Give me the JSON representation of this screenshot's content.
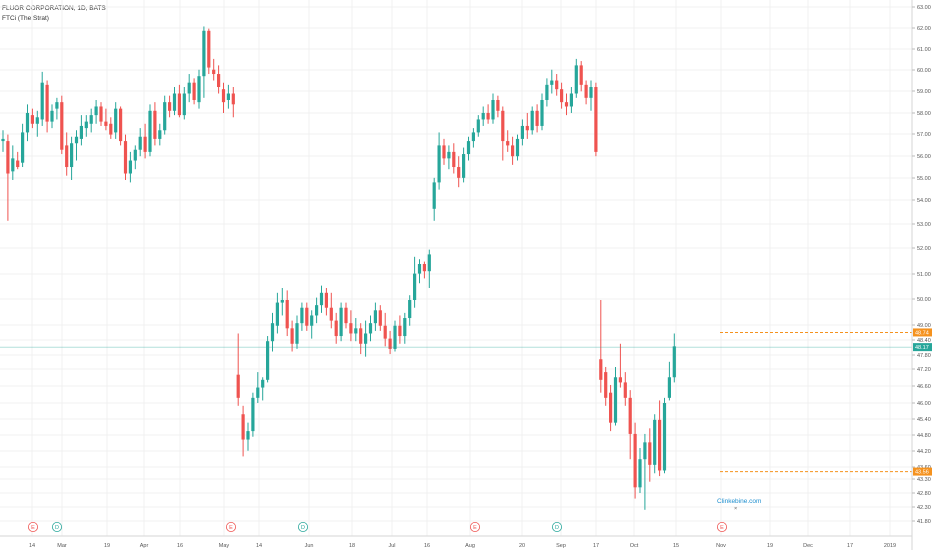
{
  "header": {
    "title": "FLUOR CORPORATION, 1D, BATS",
    "study": "FTCi (The Strat)"
  },
  "colors": {
    "up": "#26a69a",
    "down": "#ef5350",
    "level_line": "#f5921e",
    "current_line": "#26a69a",
    "earnings": "#ef5350",
    "dividend": "#26a69a",
    "watermark": "#1f8fcf"
  },
  "watermark": "Clinkebine.com",
  "chart_data": {
    "type": "candlestick",
    "title": "FLUOR CORPORATION, 1D, BATS",
    "study": "FTCi (The Strat)",
    "y_axis": {
      "side": "right",
      "range": [
        41.7,
        63.3
      ],
      "ticks": [
        "63.00",
        "62.00",
        "61.00",
        "60.00",
        "59.00",
        "58.00",
        "57.00",
        "56.00",
        "55.00",
        "54.00",
        "53.00",
        "52.00",
        "51.00",
        "50.00",
        "49.00",
        "48.40",
        "47.80",
        "47.20",
        "46.60",
        "46.00",
        "45.40",
        "44.80",
        "44.20",
        "43.60",
        "43.30",
        "42.80",
        "42.30",
        "41.80"
      ]
    },
    "x_axis": {
      "ticks": [
        "14",
        "Mar",
        "19",
        "Apr",
        "16",
        "May",
        "14",
        "Jun",
        "18",
        "Jul",
        "16",
        "Aug",
        "20",
        "Sep",
        "17",
        "Oct",
        "15",
        "Nov",
        "19",
        "Dec",
        "17",
        "2019"
      ]
    },
    "price_tags": [
      {
        "value": "48.74",
        "role": "level"
      },
      {
        "value": "48.17",
        "role": "current"
      },
      {
        "value": "43.56",
        "role": "level"
      }
    ],
    "level_lines": [
      48.74,
      43.56
    ],
    "current_price": 48.17,
    "events": [
      {
        "type": "E",
        "date": "Feb 21"
      },
      {
        "type": "D",
        "date": "Mar 1"
      },
      {
        "type": "E",
        "date": "May 3"
      },
      {
        "type": "D",
        "date": "Jun 1"
      },
      {
        "type": "E",
        "date": "Aug 2"
      },
      {
        "type": "D",
        "date": "Sep 4"
      },
      {
        "type": "E",
        "date": "Nov 2"
      }
    ],
    "candles": [
      {
        "o": 56.8,
        "h": 57.3,
        "l": 56.3,
        "c": 56.9
      },
      {
        "o": 56.8,
        "h": 57.1,
        "l": 53.3,
        "c": 55.3
      },
      {
        "o": 55.4,
        "h": 56.6,
        "l": 55.0,
        "c": 56.0
      },
      {
        "o": 55.9,
        "h": 56.3,
        "l": 55.5,
        "c": 55.6
      },
      {
        "o": 55.8,
        "h": 57.6,
        "l": 55.6,
        "c": 57.2
      },
      {
        "o": 57.2,
        "h": 58.5,
        "l": 56.8,
        "c": 58.1
      },
      {
        "o": 58.0,
        "h": 58.3,
        "l": 57.4,
        "c": 57.6
      },
      {
        "o": 57.6,
        "h": 58.2,
        "l": 57.0,
        "c": 57.9
      },
      {
        "o": 57.8,
        "h": 60.0,
        "l": 57.5,
        "c": 59.5
      },
      {
        "o": 59.4,
        "h": 59.6,
        "l": 57.2,
        "c": 57.7
      },
      {
        "o": 57.7,
        "h": 58.5,
        "l": 57.4,
        "c": 58.2
      },
      {
        "o": 58.3,
        "h": 58.8,
        "l": 57.8,
        "c": 58.6
      },
      {
        "o": 58.6,
        "h": 58.9,
        "l": 56.2,
        "c": 56.4
      },
      {
        "o": 56.6,
        "h": 57.2,
        "l": 55.2,
        "c": 55.6
      },
      {
        "o": 55.6,
        "h": 57.0,
        "l": 55.0,
        "c": 56.7
      },
      {
        "o": 56.7,
        "h": 57.3,
        "l": 55.9,
        "c": 57.0
      },
      {
        "o": 56.9,
        "h": 58.0,
        "l": 56.6,
        "c": 57.5
      },
      {
        "o": 57.4,
        "h": 58.0,
        "l": 57.0,
        "c": 57.7
      },
      {
        "o": 57.6,
        "h": 58.3,
        "l": 57.2,
        "c": 58.0
      },
      {
        "o": 58.0,
        "h": 58.7,
        "l": 57.6,
        "c": 58.4
      },
      {
        "o": 58.4,
        "h": 58.6,
        "l": 57.5,
        "c": 57.7
      },
      {
        "o": 57.7,
        "h": 58.3,
        "l": 57.3,
        "c": 57.5
      },
      {
        "o": 57.6,
        "h": 57.9,
        "l": 56.9,
        "c": 57.1
      },
      {
        "o": 57.2,
        "h": 58.6,
        "l": 56.9,
        "c": 58.3
      },
      {
        "o": 58.3,
        "h": 58.4,
        "l": 56.6,
        "c": 56.8
      },
      {
        "o": 56.8,
        "h": 57.1,
        "l": 55.0,
        "c": 55.3
      },
      {
        "o": 55.3,
        "h": 56.3,
        "l": 54.9,
        "c": 55.9
      },
      {
        "o": 55.9,
        "h": 56.6,
        "l": 55.5,
        "c": 56.4
      },
      {
        "o": 56.4,
        "h": 57.4,
        "l": 56.1,
        "c": 57.0
      },
      {
        "o": 57.0,
        "h": 57.6,
        "l": 56.0,
        "c": 56.3
      },
      {
        "o": 56.3,
        "h": 58.5,
        "l": 56.1,
        "c": 58.2
      },
      {
        "o": 58.2,
        "h": 58.6,
        "l": 56.6,
        "c": 56.9
      },
      {
        "o": 56.9,
        "h": 57.6,
        "l": 56.6,
        "c": 57.3
      },
      {
        "o": 57.3,
        "h": 58.9,
        "l": 57.1,
        "c": 58.6
      },
      {
        "o": 58.6,
        "h": 58.9,
        "l": 57.9,
        "c": 58.2
      },
      {
        "o": 58.2,
        "h": 59.3,
        "l": 58.0,
        "c": 59.0
      },
      {
        "o": 59.0,
        "h": 59.4,
        "l": 57.9,
        "c": 58.0
      },
      {
        "o": 58.0,
        "h": 59.3,
        "l": 57.8,
        "c": 59.0
      },
      {
        "o": 59.0,
        "h": 59.9,
        "l": 58.6,
        "c": 59.5
      },
      {
        "o": 59.5,
        "h": 59.7,
        "l": 58.5,
        "c": 58.7
      },
      {
        "o": 58.6,
        "h": 60.1,
        "l": 58.3,
        "c": 59.8
      },
      {
        "o": 59.8,
        "h": 62.1,
        "l": 58.8,
        "c": 61.9
      },
      {
        "o": 61.9,
        "h": 62.0,
        "l": 59.9,
        "c": 60.2
      },
      {
        "o": 60.1,
        "h": 60.6,
        "l": 59.6,
        "c": 59.9
      },
      {
        "o": 59.9,
        "h": 60.3,
        "l": 59.0,
        "c": 59.3
      },
      {
        "o": 59.2,
        "h": 59.5,
        "l": 58.1,
        "c": 58.6
      },
      {
        "o": 58.7,
        "h": 59.4,
        "l": 58.3,
        "c": 59.0
      },
      {
        "o": 59.0,
        "h": 59.3,
        "l": 57.9,
        "c": 58.5
      },
      {
        "o": 47.1,
        "h": 48.7,
        "l": 45.9,
        "c": 46.2
      },
      {
        "o": 45.6,
        "h": 45.9,
        "l": 44.1,
        "c": 44.7
      },
      {
        "o": 44.7,
        "h": 45.3,
        "l": 44.3,
        "c": 45.0
      },
      {
        "o": 45.0,
        "h": 46.4,
        "l": 44.8,
        "c": 46.2
      },
      {
        "o": 46.2,
        "h": 47.2,
        "l": 46.0,
        "c": 46.6
      },
      {
        "o": 46.6,
        "h": 47.0,
        "l": 46.1,
        "c": 46.9
      },
      {
        "o": 46.9,
        "h": 48.6,
        "l": 46.8,
        "c": 48.4
      },
      {
        "o": 48.4,
        "h": 49.5,
        "l": 48.0,
        "c": 49.1
      },
      {
        "o": 49.0,
        "h": 50.3,
        "l": 48.7,
        "c": 49.9
      },
      {
        "o": 49.9,
        "h": 50.5,
        "l": 49.4,
        "c": 50.0
      },
      {
        "o": 50.0,
        "h": 50.4,
        "l": 48.6,
        "c": 48.9
      },
      {
        "o": 48.9,
        "h": 49.2,
        "l": 48.0,
        "c": 48.3
      },
      {
        "o": 48.3,
        "h": 49.4,
        "l": 48.1,
        "c": 49.1
      },
      {
        "o": 49.1,
        "h": 49.9,
        "l": 48.8,
        "c": 49.7
      },
      {
        "o": 49.7,
        "h": 49.9,
        "l": 48.8,
        "c": 49.0
      },
      {
        "o": 49.0,
        "h": 49.6,
        "l": 48.5,
        "c": 49.4
      },
      {
        "o": 49.4,
        "h": 50.1,
        "l": 49.1,
        "c": 49.8
      },
      {
        "o": 49.8,
        "h": 50.6,
        "l": 49.5,
        "c": 50.3
      },
      {
        "o": 50.3,
        "h": 50.5,
        "l": 49.4,
        "c": 49.7
      },
      {
        "o": 49.7,
        "h": 50.3,
        "l": 48.9,
        "c": 49.2
      },
      {
        "o": 49.2,
        "h": 49.5,
        "l": 48.3,
        "c": 48.6
      },
      {
        "o": 48.6,
        "h": 49.9,
        "l": 48.4,
        "c": 49.7
      },
      {
        "o": 49.7,
        "h": 49.9,
        "l": 48.9,
        "c": 49.1
      },
      {
        "o": 49.1,
        "h": 49.6,
        "l": 48.4,
        "c": 48.7
      },
      {
        "o": 48.7,
        "h": 49.3,
        "l": 48.4,
        "c": 48.9
      },
      {
        "o": 48.9,
        "h": 49.1,
        "l": 47.9,
        "c": 48.3
      },
      {
        "o": 48.3,
        "h": 49.2,
        "l": 47.8,
        "c": 48.7
      },
      {
        "o": 48.7,
        "h": 49.4,
        "l": 48.4,
        "c": 49.1
      },
      {
        "o": 49.1,
        "h": 49.9,
        "l": 48.8,
        "c": 49.6
      },
      {
        "o": 49.6,
        "h": 49.8,
        "l": 48.8,
        "c": 49.0
      },
      {
        "o": 49.0,
        "h": 49.5,
        "l": 48.2,
        "c": 48.5
      },
      {
        "o": 48.5,
        "h": 48.8,
        "l": 47.9,
        "c": 48.1
      },
      {
        "o": 48.1,
        "h": 49.2,
        "l": 48.0,
        "c": 49.0
      },
      {
        "o": 49.0,
        "h": 49.4,
        "l": 48.3,
        "c": 48.6
      },
      {
        "o": 48.6,
        "h": 49.5,
        "l": 48.3,
        "c": 49.3
      },
      {
        "o": 49.3,
        "h": 50.2,
        "l": 49.0,
        "c": 50.0
      },
      {
        "o": 50.0,
        "h": 51.8,
        "l": 49.7,
        "c": 51.1
      },
      {
        "o": 51.1,
        "h": 51.7,
        "l": 50.7,
        "c": 51.5
      },
      {
        "o": 51.5,
        "h": 51.6,
        "l": 50.9,
        "c": 51.2
      },
      {
        "o": 51.2,
        "h": 52.1,
        "l": 50.5,
        "c": 51.9
      },
      {
        "o": 53.8,
        "h": 55.1,
        "l": 53.3,
        "c": 54.9
      },
      {
        "o": 54.9,
        "h": 57.2,
        "l": 54.6,
        "c": 56.6
      },
      {
        "o": 56.6,
        "h": 56.9,
        "l": 55.7,
        "c": 56.0
      },
      {
        "o": 56.0,
        "h": 56.6,
        "l": 55.5,
        "c": 56.3
      },
      {
        "o": 56.3,
        "h": 56.7,
        "l": 55.3,
        "c": 55.6
      },
      {
        "o": 55.6,
        "h": 56.1,
        "l": 54.7,
        "c": 55.1
      },
      {
        "o": 55.1,
        "h": 56.5,
        "l": 54.9,
        "c": 56.2
      },
      {
        "o": 56.2,
        "h": 57.0,
        "l": 55.9,
        "c": 56.8
      },
      {
        "o": 56.8,
        "h": 57.4,
        "l": 56.5,
        "c": 57.2
      },
      {
        "o": 57.2,
        "h": 58.0,
        "l": 57.0,
        "c": 57.8
      },
      {
        "o": 57.8,
        "h": 58.4,
        "l": 57.5,
        "c": 58.1
      },
      {
        "o": 58.1,
        "h": 58.5,
        "l": 57.6,
        "c": 57.8
      },
      {
        "o": 57.8,
        "h": 59.0,
        "l": 57.6,
        "c": 58.7
      },
      {
        "o": 58.7,
        "h": 58.9,
        "l": 57.9,
        "c": 58.2
      },
      {
        "o": 58.2,
        "h": 58.4,
        "l": 55.9,
        "c": 56.8
      },
      {
        "o": 56.8,
        "h": 57.3,
        "l": 56.3,
        "c": 56.6
      },
      {
        "o": 56.6,
        "h": 57.0,
        "l": 55.7,
        "c": 56.1
      },
      {
        "o": 56.1,
        "h": 57.1,
        "l": 55.9,
        "c": 56.9
      },
      {
        "o": 56.9,
        "h": 57.8,
        "l": 56.6,
        "c": 57.5
      },
      {
        "o": 57.5,
        "h": 58.1,
        "l": 56.9,
        "c": 57.3
      },
      {
        "o": 57.3,
        "h": 58.4,
        "l": 57.1,
        "c": 58.2
      },
      {
        "o": 58.2,
        "h": 58.5,
        "l": 57.2,
        "c": 57.5
      },
      {
        "o": 57.5,
        "h": 59.0,
        "l": 57.3,
        "c": 58.7
      },
      {
        "o": 58.7,
        "h": 59.7,
        "l": 58.4,
        "c": 59.4
      },
      {
        "o": 59.4,
        "h": 60.1,
        "l": 59.0,
        "c": 59.6
      },
      {
        "o": 59.6,
        "h": 59.9,
        "l": 58.9,
        "c": 59.2
      },
      {
        "o": 59.2,
        "h": 59.5,
        "l": 58.3,
        "c": 58.6
      },
      {
        "o": 58.6,
        "h": 59.0,
        "l": 58.0,
        "c": 58.4
      },
      {
        "o": 58.4,
        "h": 59.3,
        "l": 58.1,
        "c": 59.0
      },
      {
        "o": 59.0,
        "h": 60.6,
        "l": 58.8,
        "c": 60.3
      },
      {
        "o": 60.3,
        "h": 60.5,
        "l": 59.1,
        "c": 59.4
      },
      {
        "o": 59.4,
        "h": 59.6,
        "l": 58.5,
        "c": 58.8
      },
      {
        "o": 58.8,
        "h": 59.6,
        "l": 58.2,
        "c": 59.3
      },
      {
        "o": 59.3,
        "h": 59.5,
        "l": 56.1,
        "c": 56.3
      },
      {
        "o": 47.7,
        "h": 50.0,
        "l": 46.4,
        "c": 46.9
      },
      {
        "o": 47.2,
        "h": 47.4,
        "l": 45.9,
        "c": 46.2
      },
      {
        "o": 46.4,
        "h": 46.7,
        "l": 45.0,
        "c": 45.3
      },
      {
        "o": 45.3,
        "h": 47.4,
        "l": 45.2,
        "c": 47.0
      },
      {
        "o": 47.0,
        "h": 48.3,
        "l": 46.6,
        "c": 46.8
      },
      {
        "o": 46.8,
        "h": 47.2,
        "l": 45.9,
        "c": 46.2
      },
      {
        "o": 46.2,
        "h": 46.5,
        "l": 44.0,
        "c": 44.9
      },
      {
        "o": 44.9,
        "h": 45.3,
        "l": 42.6,
        "c": 43.0
      },
      {
        "o": 43.0,
        "h": 44.4,
        "l": 42.8,
        "c": 44.0
      },
      {
        "o": 44.0,
        "h": 44.9,
        "l": 42.2,
        "c": 44.6
      },
      {
        "o": 44.6,
        "h": 45.1,
        "l": 43.2,
        "c": 43.8
      },
      {
        "o": 43.8,
        "h": 45.6,
        "l": 43.5,
        "c": 45.4
      },
      {
        "o": 45.4,
        "h": 46.1,
        "l": 43.4,
        "c": 43.6
      },
      {
        "o": 43.6,
        "h": 46.2,
        "l": 43.5,
        "c": 46.0
      },
      {
        "o": 46.2,
        "h": 47.6,
        "l": 46.1,
        "c": 47.0
      },
      {
        "o": 47.0,
        "h": 48.7,
        "l": 46.8,
        "c": 48.2
      }
    ]
  }
}
